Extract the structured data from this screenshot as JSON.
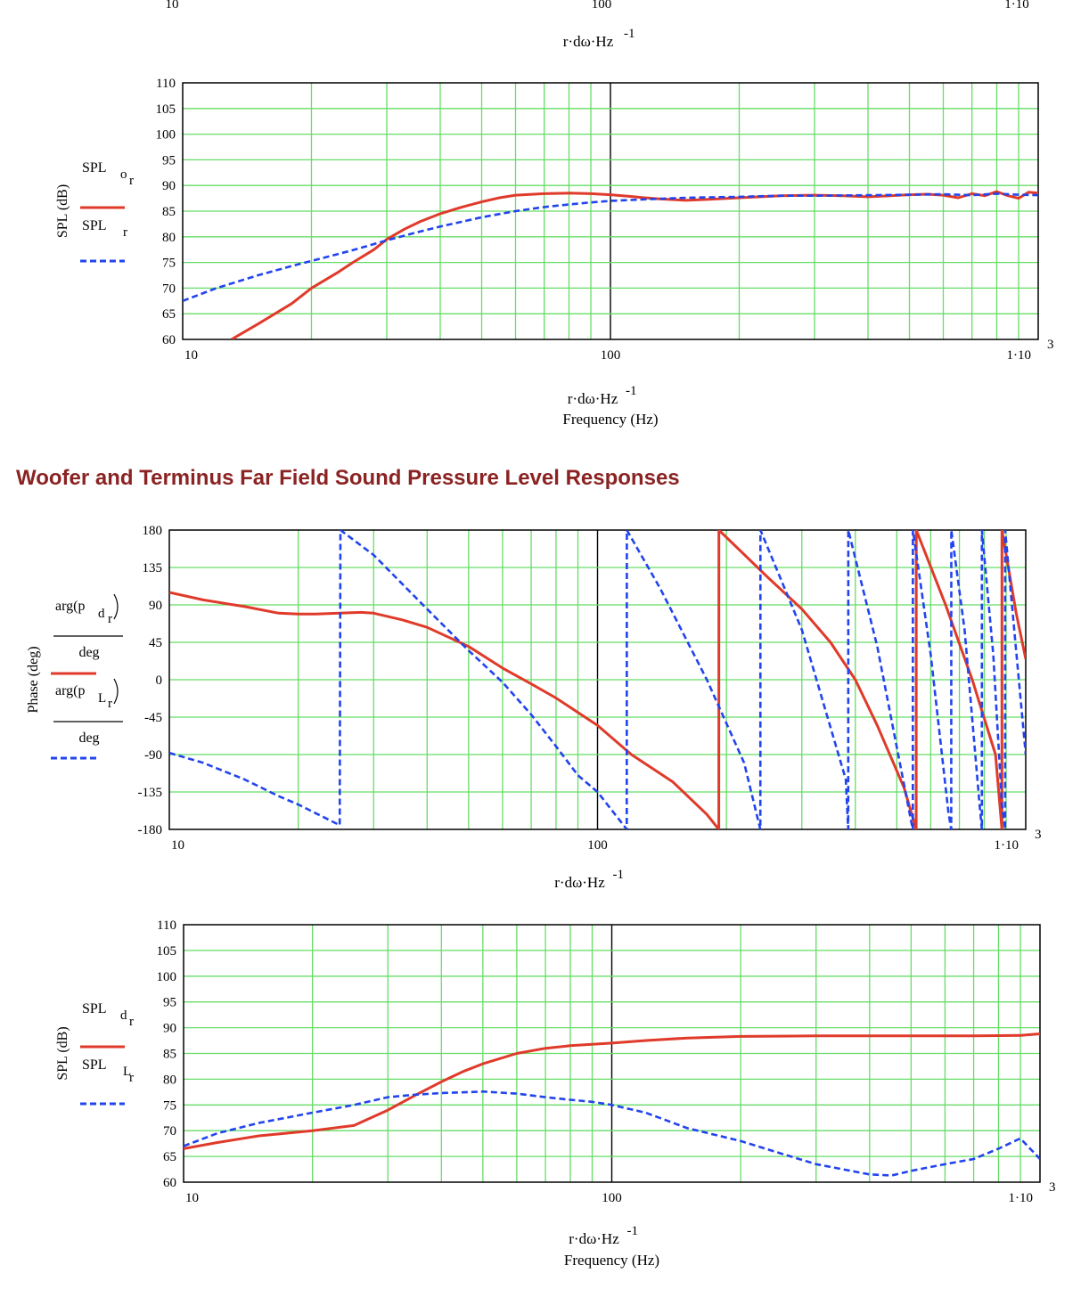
{
  "section_title": "Woofer and Terminus Far Field Sound Pressure Level Responses",
  "top_partial": {
    "tick_labels": [
      "10",
      "100",
      "1·10"
    ],
    "xlabel": "r·dω·Hz",
    "xlabel_exp": "-1"
  },
  "chart_data": [
    {
      "type": "line",
      "xscale": "log",
      "xlim": [
        10,
        1000
      ],
      "ylim": [
        60,
        110
      ],
      "yticks": [
        60,
        65,
        70,
        75,
        80,
        85,
        90,
        95,
        100,
        105,
        110
      ],
      "xtick_labels": [
        "10",
        "100",
        "1·10"
      ],
      "xtick_exp": "3",
      "xlabel": "r·dω·Hz",
      "xlabel_exp": "-1",
      "xlabel2": "Frequency (Hz)",
      "ylabel": "SPL (dB)",
      "grid": true,
      "colors": {
        "grid": "#66dd66",
        "series1": "#e03a2a",
        "series2": "#2244ee"
      },
      "series": [
        {
          "name": "SPL",
          "sub": "o",
          "subsub": "r",
          "style": "solid",
          "x": [
            13,
            15,
            18,
            20,
            23,
            25,
            28,
            30,
            33,
            36,
            40,
            45,
            50,
            55,
            60,
            70,
            80,
            90,
            100,
            110,
            120,
            130,
            150,
            170,
            200,
            250,
            300,
            350,
            400,
            450,
            500,
            550,
            600,
            650,
            700,
            750,
            800,
            850,
            900,
            950,
            1000
          ],
          "values": [
            60,
            63,
            67,
            70,
            73,
            75,
            77.5,
            79.5,
            81.5,
            83,
            84.5,
            85.8,
            86.8,
            87.6,
            88.1,
            88.4,
            88.5,
            88.4,
            88.2,
            87.9,
            87.6,
            87.4,
            87.1,
            87.3,
            87.6,
            88.0,
            88.1,
            88.0,
            87.8,
            88.0,
            88.2,
            88.3,
            88.1,
            87.6,
            88.4,
            88.0,
            88.8,
            88.0,
            87.5,
            88.7,
            88.5
          ]
        },
        {
          "name": "SPL",
          "sub": "r",
          "style": "dashed",
          "x": [
            10,
            12,
            15,
            18,
            20,
            25,
            30,
            35,
            40,
            50,
            60,
            70,
            80,
            90,
            100,
            120,
            150,
            200,
            250,
            300,
            400,
            500,
            600,
            700,
            800,
            900,
            1000
          ],
          "values": [
            67.5,
            70,
            72.5,
            74.3,
            75.3,
            77.4,
            79.3,
            80.8,
            82,
            83.8,
            85,
            85.8,
            86.3,
            86.7,
            87,
            87.3,
            87.6,
            87.8,
            88.0,
            88.0,
            88.1,
            88.2,
            88.3,
            88.1,
            88.4,
            88.2,
            88.1
          ]
        }
      ]
    },
    {
      "type": "line",
      "xscale": "log",
      "xlim": [
        10,
        1000
      ],
      "ylim": [
        -180,
        180
      ],
      "yticks": [
        -180,
        -135,
        -90,
        -45,
        0,
        45,
        90,
        135,
        180
      ],
      "xtick_labels": [
        "10",
        "100",
        "1·10"
      ],
      "xtick_exp": "3",
      "xlabel": "r·dω·Hz",
      "xlabel_exp": "-1",
      "ylabel": "Phase (deg)",
      "grid": true,
      "series": [
        {
          "name": "arg(p",
          "sub": "d",
          "subsub": "r",
          "denominator": "deg",
          "style": "solid",
          "x": [
            10,
            12,
            15,
            18,
            20,
            22,
            25,
            28,
            30,
            35,
            40,
            50,
            60,
            70,
            80,
            100,
            120,
            150,
            180,
            192,
            192.1,
            250,
            300,
            350,
            400,
            450,
            520,
            555,
            555.1,
            650,
            750,
            850,
            880,
            880.1,
            950,
            1000
          ],
          "values": [
            105,
            96,
            88,
            80,
            79,
            79,
            80,
            81,
            80,
            72,
            63,
            40,
            14,
            -5,
            -22,
            -55,
            -90,
            -123,
            -162,
            -180,
            180,
            123,
            85,
            45,
            0,
            -55,
            -130,
            -180,
            180,
            90,
            0,
            -90,
            -180,
            180,
            80,
            25
          ]
        },
        {
          "name": "arg(p",
          "sub": "L",
          "subsub": "r",
          "denominator": "deg",
          "style": "dashed",
          "x": [
            10,
            12,
            15,
            18,
            20,
            25,
            25.1,
            30,
            40,
            50,
            60,
            70,
            80,
            90,
            100,
            115,
            117,
            117.1,
            140,
            180,
            220,
            240,
            240.1,
            300,
            380,
            385,
            385.1,
            450,
            540,
            545,
            545.1,
            600,
            660,
            670,
            670.1,
            720,
            780,
            790,
            790.1,
            840,
            880,
            895,
            895.1,
            940,
            1000
          ],
          "values": [
            -88,
            -100,
            -120,
            -140,
            -150,
            -175,
            180,
            150,
            85,
            35,
            -3,
            -42,
            -80,
            -115,
            -135,
            -175,
            -180,
            180,
            110,
            0,
            -100,
            -180,
            180,
            60,
            -120,
            -180,
            180,
            40,
            -170,
            -180,
            180,
            30,
            -160,
            -180,
            180,
            60,
            -150,
            -180,
            180,
            30,
            -150,
            -180,
            180,
            60,
            -90
          ]
        }
      ]
    },
    {
      "type": "line",
      "xscale": "log",
      "xlim": [
        10,
        1000
      ],
      "ylim": [
        60,
        110
      ],
      "yticks": [
        60,
        65,
        70,
        75,
        80,
        85,
        90,
        95,
        100,
        105,
        110
      ],
      "xtick_labels": [
        "10",
        "100",
        "1·10"
      ],
      "xtick_exp": "3",
      "xlabel": "r·dω·Hz",
      "xlabel_exp": "-1",
      "xlabel2": "Frequency (Hz)",
      "ylabel": "SPL (dB)",
      "grid": true,
      "series": [
        {
          "name": "SPL",
          "sub": "d",
          "subsub": "r",
          "style": "solid",
          "x": [
            10,
            12,
            15,
            20,
            25,
            30,
            35,
            40,
            45,
            50,
            60,
            70,
            80,
            100,
            120,
            150,
            200,
            300,
            500,
            700,
            900,
            1000
          ],
          "values": [
            66.5,
            67.7,
            69,
            70,
            71,
            74,
            77,
            79.5,
            81.5,
            83,
            85,
            86,
            86.5,
            87,
            87.5,
            88,
            88.3,
            88.4,
            88.4,
            88.4,
            88.5,
            88.8
          ]
        },
        {
          "name": "SPL",
          "sub": "L",
          "subsub": "r",
          "style": "dashed",
          "x": [
            10,
            12,
            15,
            20,
            25,
            30,
            35,
            40,
            50,
            60,
            70,
            80,
            90,
            100,
            120,
            150,
            200,
            250,
            300,
            400,
            450,
            500,
            600,
            700,
            800,
            900,
            1000
          ],
          "values": [
            67,
            69.5,
            71.5,
            73.5,
            75,
            76.5,
            77,
            77.3,
            77.6,
            77.2,
            76.5,
            76,
            75.6,
            75,
            73.5,
            70.5,
            68,
            65.5,
            63.5,
            61.5,
            61.3,
            62.2,
            63.5,
            64.5,
            66.5,
            68.5,
            64.5
          ]
        }
      ]
    }
  ]
}
